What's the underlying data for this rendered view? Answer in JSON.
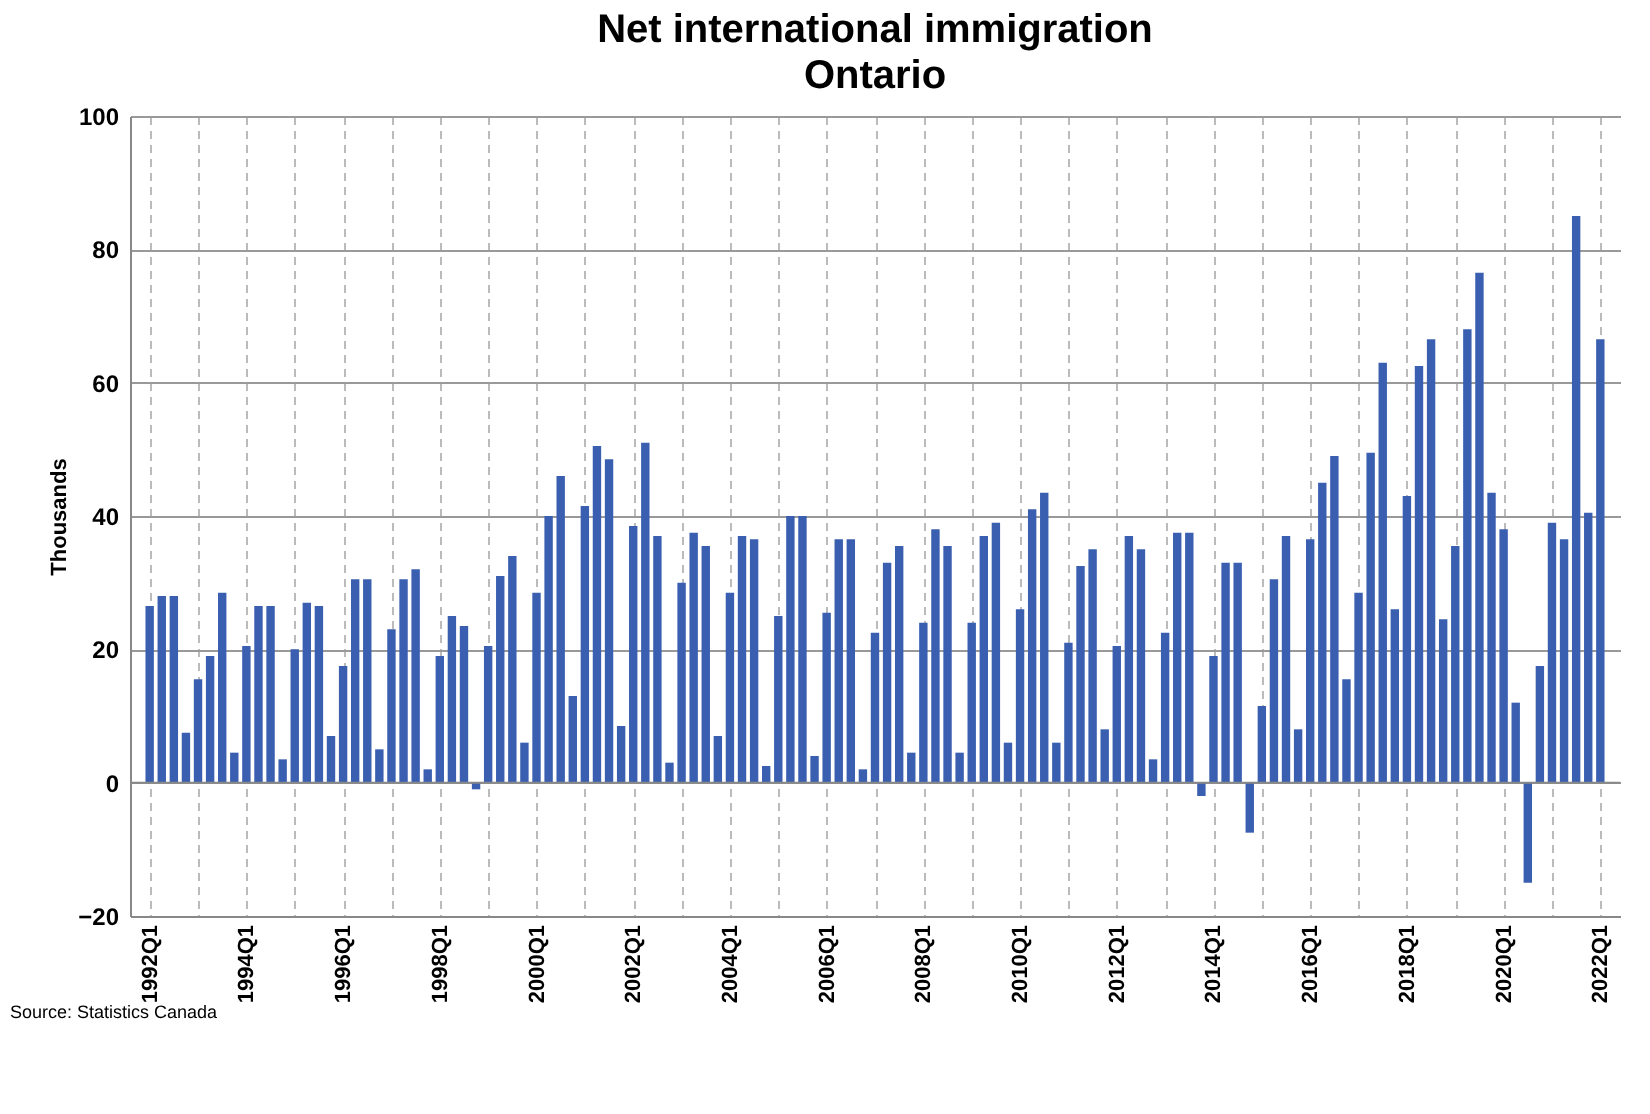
{
  "chart_data": {
    "type": "bar",
    "title": "Net international immigration",
    "subtitle": "Ontario",
    "ylabel": "Thousands",
    "annotations": [
      "Source: Statistics Canada"
    ],
    "categories": [
      "1992Q1",
      null,
      null,
      null,
      null,
      null,
      null,
      null,
      "1994Q1",
      null,
      null,
      null,
      null,
      null,
      null,
      null,
      "1996Q1",
      null,
      null,
      null,
      null,
      null,
      null,
      null,
      "1998Q1",
      null,
      null,
      null,
      null,
      null,
      null,
      null,
      "2000Q1",
      null,
      null,
      null,
      null,
      null,
      null,
      null,
      "2002Q1",
      null,
      null,
      null,
      null,
      null,
      null,
      null,
      "2004Q1",
      null,
      null,
      null,
      null,
      null,
      null,
      null,
      "2006Q1",
      null,
      null,
      null,
      null,
      null,
      null,
      null,
      "2008Q1",
      null,
      null,
      null,
      null,
      null,
      null,
      null,
      "2010Q1",
      null,
      null,
      null,
      null,
      null,
      null,
      null,
      "2012Q1",
      null,
      null,
      null,
      null,
      null,
      null,
      null,
      "2014Q1",
      null,
      null,
      null,
      null,
      null,
      null,
      null,
      "2016Q1",
      null,
      null,
      null,
      null,
      null,
      null,
      null,
      "2018Q1",
      null,
      null,
      null,
      null,
      null,
      null,
      null,
      "2020Q1",
      null,
      null,
      null,
      null,
      null,
      null,
      null,
      "2022Q1"
    ],
    "values": [
      26.5,
      28,
      28,
      7.5,
      15.5,
      19,
      28.5,
      4.5,
      20.5,
      26.5,
      26.5,
      3.5,
      20,
      27,
      26.5,
      7,
      17.5,
      30.5,
      30.5,
      5,
      23,
      30.5,
      32,
      2,
      19,
      25,
      23.5,
      -1,
      20.5,
      31,
      34,
      6,
      28.5,
      40,
      46,
      13,
      41.5,
      50.5,
      48.5,
      8.5,
      38.5,
      51,
      37,
      3,
      30,
      37.5,
      35.5,
      7,
      28.5,
      37,
      36.5,
      2.5,
      25,
      40,
      40,
      4,
      25.5,
      36.5,
      36.5,
      2,
      22.5,
      33,
      35.5,
      4.5,
      24,
      38,
      35.5,
      4.5,
      24,
      37,
      39,
      6,
      26,
      41,
      43.5,
      6,
      21,
      32.5,
      35,
      8,
      20.5,
      37,
      35,
      3.5,
      22.5,
      37.5,
      37.5,
      -2,
      19,
      33,
      33,
      -7.5,
      11.5,
      30.5,
      37,
      8,
      36.5,
      45,
      49,
      15.5,
      28.5,
      49.5,
      63,
      26,
      43,
      62.5,
      66.5,
      24.5,
      35.5,
      68,
      76.5,
      43.5,
      38,
      12,
      -15,
      17.5,
      39,
      36.5,
      85,
      40.5,
      66.5
    ],
    "color": "#3a5fb0",
    "ylim": [
      -20,
      100
    ],
    "yticks": [
      -20,
      0,
      20,
      40,
      60,
      80,
      100
    ],
    "grid": true
  }
}
